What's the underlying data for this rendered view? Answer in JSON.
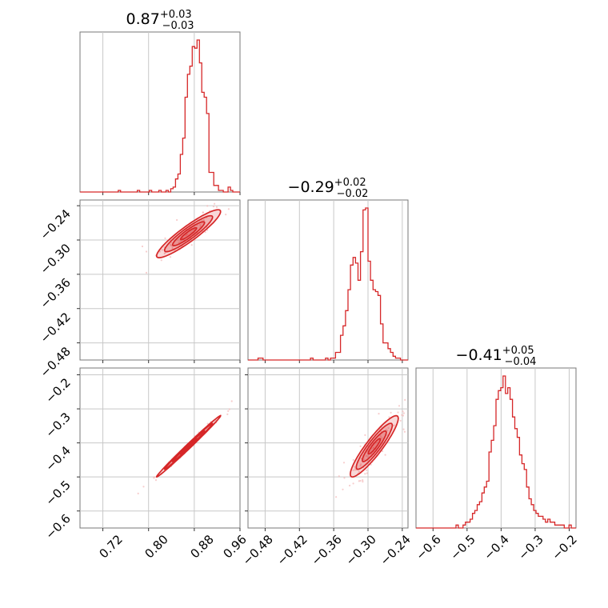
{
  "chart_data": {
    "type": "corner",
    "color": "#d62728",
    "parameters": [
      {
        "title": {
          "main": "0.87",
          "plus": "+0.03",
          "minus": "−0.03"
        },
        "range": [
          0.68,
          0.96
        ],
        "ticks": [
          0.72,
          0.8,
          0.88,
          0.96
        ],
        "tick_labels": [
          "0.72",
          "0.80",
          "0.88",
          "0.96"
        ]
      },
      {
        "title": {
          "main": "−0.29",
          "plus": "+0.02",
          "minus": "−0.02"
        },
        "range": [
          -0.51,
          -0.23
        ],
        "ticks": [
          -0.48,
          -0.42,
          -0.36,
          -0.3,
          -0.24
        ],
        "tick_labels": [
          "−0.48",
          "−0.42",
          "−0.36",
          "−0.30",
          "−0.24"
        ]
      },
      {
        "title": {
          "main": "−0.41",
          "plus": "+0.05",
          "minus": "−0.04"
        },
        "range": [
          -0.65,
          -0.18
        ],
        "ticks": [
          -0.6,
          -0.5,
          -0.4,
          -0.3,
          -0.2
        ],
        "tick_labels": [
          "−0.6",
          "−0.5",
          "−0.4",
          "−0.3",
          "−0.2"
        ]
      }
    ],
    "histograms": [
      {
        "param": 0,
        "edges_range": [
          0.68,
          0.96
        ],
        "counts": [
          0,
          0,
          0,
          0,
          0,
          0,
          0,
          0,
          0,
          0,
          0,
          0,
          0,
          0,
          0,
          0,
          1,
          0,
          0,
          0,
          0,
          0,
          0,
          0,
          1,
          0,
          0,
          0,
          0,
          1,
          0,
          0,
          0,
          1,
          0,
          0,
          1,
          0,
          2,
          3,
          8,
          11,
          23,
          33,
          58,
          72,
          77,
          89,
          88,
          93,
          79,
          61,
          58,
          48,
          12,
          12,
          4,
          4,
          1,
          1,
          0,
          0,
          3,
          1,
          0,
          0,
          0
        ]
      },
      {
        "param": 1,
        "edges_range": [
          -0.51,
          -0.23
        ],
        "counts": [
          0,
          0,
          0,
          0,
          1,
          1,
          0,
          0,
          0,
          0,
          0,
          0,
          0,
          0,
          0,
          0,
          0,
          0,
          0,
          0,
          0,
          0,
          0,
          0,
          0,
          1,
          0,
          0,
          0,
          0,
          0,
          1,
          0,
          1,
          1,
          4,
          4,
          13,
          18,
          26,
          37,
          50,
          54,
          51,
          42,
          57,
          79,
          80,
          52,
          42,
          37,
          36,
          34,
          19,
          9,
          9,
          6,
          4,
          2,
          1,
          1,
          0,
          0,
          0
        ]
      },
      {
        "param": 2,
        "edges_range": [
          -0.65,
          -0.18
        ],
        "counts": [
          0,
          0,
          0,
          0,
          0,
          0,
          0,
          0,
          0,
          0,
          0,
          0,
          0,
          0,
          0,
          0,
          0,
          1,
          0,
          0,
          1,
          2,
          2,
          3,
          5,
          6,
          8,
          9,
          12,
          14,
          16,
          26,
          30,
          35,
          44,
          47,
          48,
          52,
          46,
          48,
          44,
          38,
          34,
          31,
          25,
          22,
          20,
          14,
          10,
          8,
          6,
          5,
          4,
          4,
          3,
          2,
          3,
          2,
          2,
          1,
          1,
          1,
          1,
          0,
          0,
          1,
          0,
          0
        ]
      }
    ],
    "pairs": [
      {
        "x": 0,
        "y": 1,
        "center": [
          0.87,
          -0.289
        ],
        "sd": [
          0.028,
          0.021
        ],
        "rho": 0.92,
        "levels": [
          0.5,
          1.0,
          1.5,
          2.0
        ]
      },
      {
        "x": 0,
        "y": 2,
        "center": [
          0.87,
          -0.41
        ],
        "sd": [
          0.028,
          0.045
        ],
        "rho": 0.995,
        "levels": [
          0.5,
          1.0,
          1.5,
          2.0
        ]
      },
      {
        "x": 1,
        "y": 2,
        "center": [
          -0.289,
          -0.41
        ],
        "sd": [
          0.021,
          0.045
        ],
        "rho": 0.91,
        "levels": [
          0.5,
          1.0,
          1.5,
          2.0
        ]
      }
    ]
  }
}
